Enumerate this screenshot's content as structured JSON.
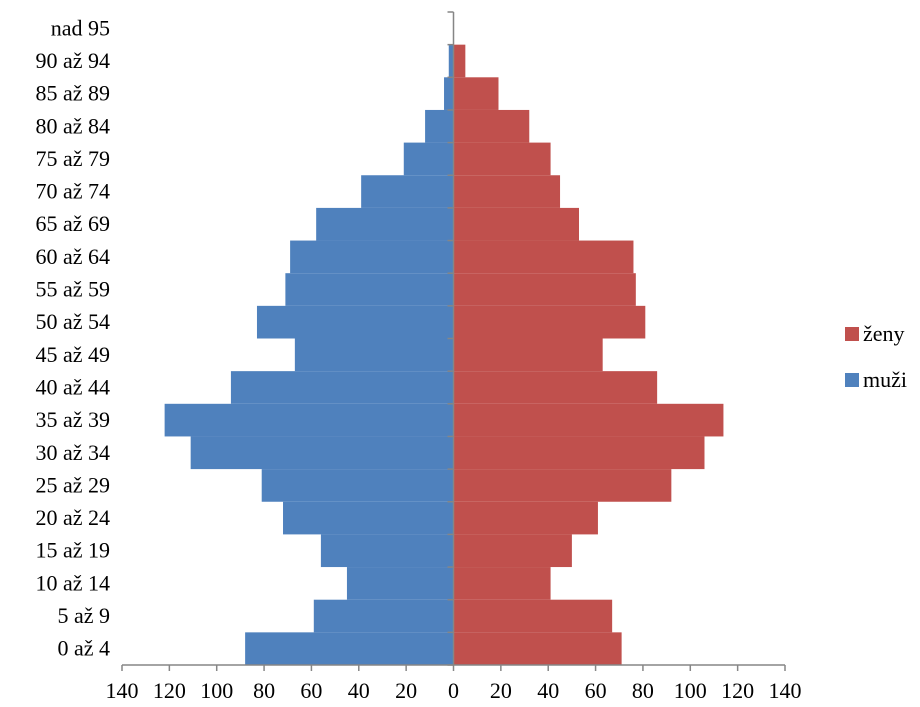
{
  "chart_data": {
    "type": "bar",
    "orientation": "horizontal",
    "subtype": "population-pyramid",
    "categories": [
      "0 až 4",
      "5 až 9",
      "10 až 14",
      "15 až 19",
      "20 až 24",
      "25 až 29",
      "30 až 34",
      "35 až 39",
      "40 až 44",
      "45 až 49",
      "50 až 54",
      "55 až 59",
      "60 až 64",
      "65 až 69",
      "70 až 74",
      "75 až 79",
      "80 až 84",
      "85 až 89",
      "90 až 94",
      "nad 95"
    ],
    "series": [
      {
        "name": "ženy",
        "color": "#c0504d",
        "values": [
          71,
          67,
          41,
          50,
          61,
          92,
          106,
          114,
          86,
          63,
          81,
          77,
          76,
          53,
          45,
          41,
          32,
          19,
          5,
          0
        ]
      },
      {
        "name": "muži",
        "color": "#4f81bd",
        "values": [
          88,
          59,
          45,
          56,
          72,
          81,
          111,
          122,
          94,
          67,
          83,
          71,
          69,
          58,
          39,
          21,
          12,
          4,
          2,
          0
        ]
      }
    ],
    "xlim": [
      -140,
      140
    ],
    "x_ticks": [
      -140,
      -120,
      -100,
      -80,
      -60,
      -40,
      -20,
      0,
      20,
      40,
      60,
      80,
      100,
      120,
      140
    ],
    "x_tick_labels": [
      "140",
      "120",
      "100",
      "80",
      "60",
      "40",
      "20",
      "0",
      "20",
      "40",
      "60",
      "80",
      "100",
      "120",
      "140"
    ],
    "left_side_series": "muži",
    "right_side_series": "ženy",
    "legend": {
      "position": "right",
      "entries": [
        "ženy",
        "muži"
      ]
    },
    "grid": false,
    "title": "",
    "xlabel": "",
    "ylabel": ""
  }
}
